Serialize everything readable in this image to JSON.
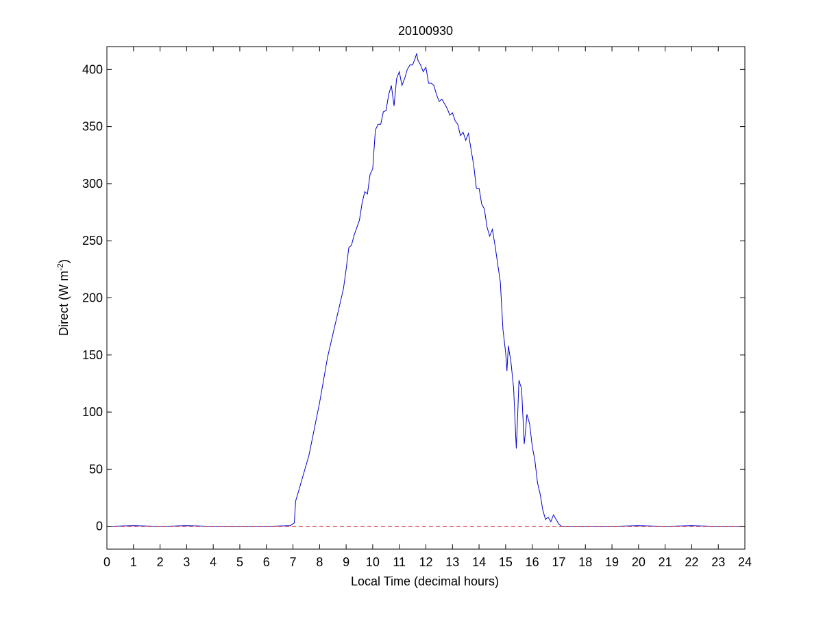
{
  "chart_data": {
    "type": "line",
    "title": "20100930",
    "xlabel": "Local Time (decimal hours)",
    "ylabel_main": "Direct (W m",
    "ylabel_sup": "-2",
    "ylabel_close": ")",
    "xlim": [
      0,
      24
    ],
    "ylim": [
      -20,
      420
    ],
    "xticks": [
      0,
      1,
      2,
      3,
      4,
      5,
      6,
      7,
      8,
      9,
      10,
      11,
      12,
      13,
      14,
      15,
      16,
      17,
      18,
      19,
      20,
      21,
      22,
      23,
      24
    ],
    "yticks": [
      0,
      50,
      100,
      150,
      200,
      250,
      300,
      350,
      400
    ],
    "grid": false,
    "series": [
      {
        "color": "#0000cc",
        "style": "solid",
        "x": [
          0,
          1,
          2,
          3,
          4,
          5,
          6,
          6.9,
          7.05,
          7.1,
          7.3,
          7.6,
          8.0,
          8.3,
          8.6,
          8.9,
          9.0,
          9.1,
          9.2,
          9.3,
          9.5,
          9.6,
          9.7,
          9.8,
          9.9,
          10.0,
          10.1,
          10.2,
          10.3,
          10.4,
          10.5,
          10.6,
          10.7,
          10.8,
          10.9,
          11.0,
          11.1,
          11.2,
          11.3,
          11.4,
          11.5,
          11.6,
          11.65,
          11.7,
          11.8,
          11.9,
          12.0,
          12.1,
          12.2,
          12.3,
          12.4,
          12.5,
          12.6,
          12.7,
          12.8,
          12.9,
          13.0,
          13.1,
          13.2,
          13.3,
          13.4,
          13.5,
          13.6,
          13.7,
          13.8,
          13.9,
          14.0,
          14.1,
          14.2,
          14.3,
          14.4,
          14.5,
          14.6,
          14.7,
          14.8,
          14.9,
          15.0,
          15.05,
          15.1,
          15.2,
          15.3,
          15.4,
          15.45,
          15.5,
          15.55,
          15.6,
          15.7,
          15.75,
          15.8,
          15.9,
          16.0,
          16.1,
          16.2,
          16.3,
          16.4,
          16.5,
          16.6,
          16.7,
          16.8,
          16.9,
          17.0,
          17.1,
          17.2,
          18,
          19,
          20,
          21,
          22,
          23,
          24
        ],
        "y": [
          0,
          0.5,
          0,
          0.5,
          0,
          0,
          0,
          0.5,
          3,
          22,
          38,
          62,
          108,
          148,
          178,
          208,
          225,
          244,
          246,
          255,
          268,
          283,
          293,
          291,
          308,
          313,
          347,
          352,
          352,
          363,
          364,
          378,
          386,
          368,
          392,
          398,
          386,
          392,
          400,
          404,
          404,
          410,
          414,
          408,
          404,
          398,
          402,
          388,
          388,
          386,
          378,
          372,
          374,
          370,
          366,
          360,
          362,
          355,
          352,
          342,
          345,
          338,
          344,
          330,
          316,
          296,
          296,
          282,
          278,
          262,
          254,
          260,
          246,
          230,
          214,
          172,
          152,
          136,
          158,
          144,
          121,
          68,
          95,
          128,
          124,
          121,
          72,
          84,
          98,
          90,
          70,
          58,
          38,
          28,
          14,
          6,
          8,
          4,
          10,
          6,
          2,
          0,
          0,
          0,
          0,
          0.5,
          0,
          0.5,
          0,
          0
        ]
      },
      {
        "color": "#cc0000",
        "style": "dashed",
        "x": [
          0,
          24
        ],
        "y": [
          0,
          0
        ]
      }
    ]
  }
}
